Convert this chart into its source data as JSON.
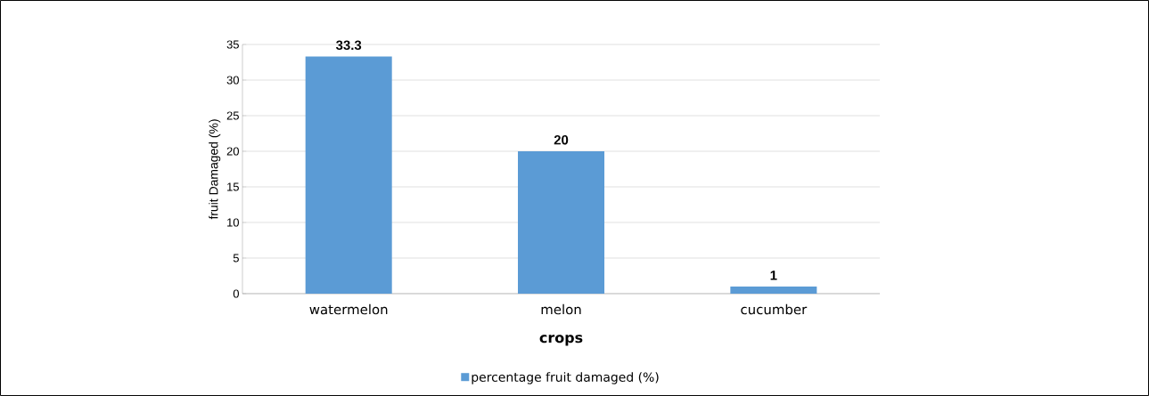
{
  "chart_data": {
    "type": "bar",
    "categories": [
      "watermelon",
      "melon",
      "cucumber"
    ],
    "series": [
      {
        "name": "percentage fruit damaged (%)",
        "color": "#5b9bd5",
        "values": [
          33.3,
          20,
          1
        ]
      }
    ],
    "xlabel": "crops",
    "ylabel": "fruit Damaged (%)",
    "ylim": [
      0,
      35
    ],
    "yticks": [
      0,
      5,
      10,
      15,
      20,
      25,
      30,
      35
    ],
    "grid": "y",
    "legend": "bottom",
    "data_labels": true
  }
}
